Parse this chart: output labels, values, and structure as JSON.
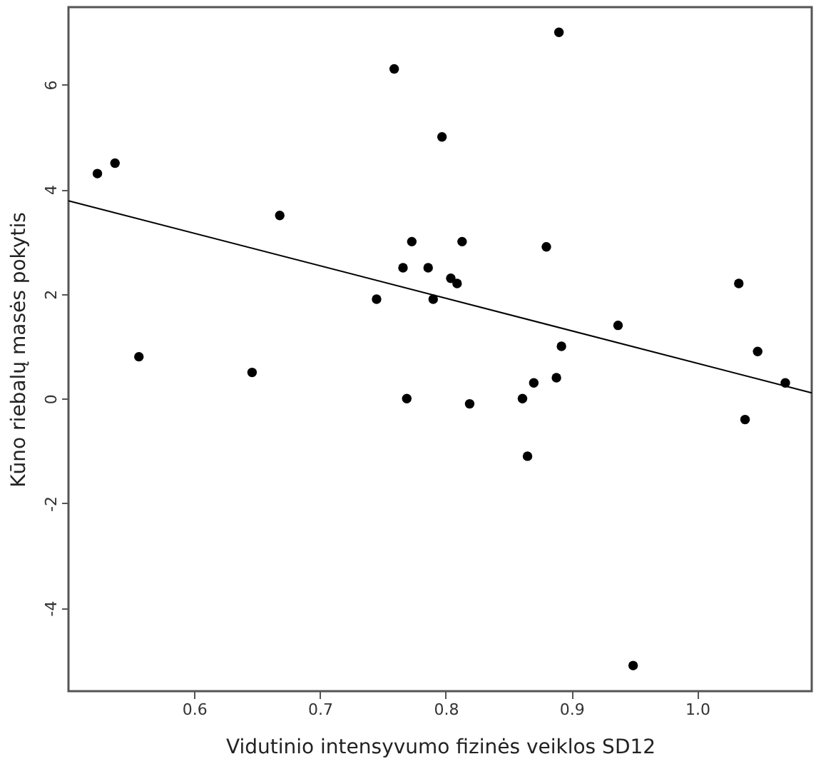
{
  "chart_data": {
    "type": "scatter",
    "xlabel": "Vidutinio intensyvumo fizinės veiklos SD12",
    "ylabel": "Kūno riebalų masės pokytis",
    "xlim": [
      0.5,
      1.091
    ],
    "ylim": [
      -5.59,
      7.48
    ],
    "xticks": [
      0.6,
      0.7,
      0.8,
      0.9,
      {
        "value": 1,
        "label": "1.0"
      }
    ],
    "yticks": [
      -4,
      -2,
      0,
      2,
      4,
      6
    ],
    "grid": false,
    "series": [
      {
        "marker": "circle",
        "color": "#000000",
        "x": [
          0.523,
          0.537,
          0.556,
          0.646,
          0.668,
          0.745,
          0.759,
          0.766,
          0.769,
          0.773,
          0.786,
          0.79,
          0.797,
          0.804,
          0.809,
          0.813,
          0.819,
          0.861,
          0.865,
          0.87,
          0.88,
          0.888,
          0.89,
          0.892,
          0.937,
          0.949,
          1.033,
          1.038,
          1.048,
          1.07
        ],
        "values": [
          4.3,
          4.5,
          0.8,
          0.5,
          3.5,
          1.9,
          6.3,
          2.5,
          0.0,
          3.0,
          2.5,
          1.9,
          5.0,
          2.3,
          2.2,
          3.0,
          -0.1,
          0.0,
          -1.1,
          0.3,
          2.9,
          0.4,
          7.0,
          1.0,
          1.4,
          -5.1,
          2.2,
          -0.4,
          0.9,
          0.3
        ]
      },
      {
        "type": "line",
        "color": "#000000",
        "x": [
          0.5,
          1.091
        ],
        "values": [
          3.78,
          0.11
        ]
      }
    ]
  }
}
